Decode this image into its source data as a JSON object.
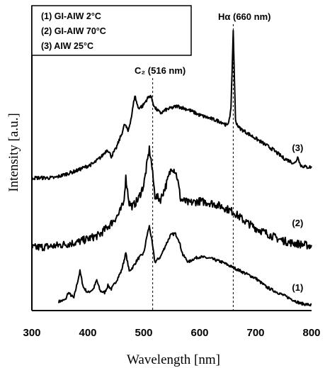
{
  "chart_data": {
    "type": "line",
    "xlabel": "Wavelength [nm]",
    "ylabel": "Intensity [a.u.]",
    "xlim": [
      300,
      800
    ],
    "x_ticks": [
      "300",
      "400",
      "500",
      "600",
      "700",
      "800"
    ],
    "y_ticks_visible": false,
    "grid": false,
    "legend": {
      "placement": "top-left",
      "entries": [
        "(1) GI-AIW 2°C",
        "(2) GI-AIW 70°C",
        "(3) AIW 25°C"
      ]
    },
    "annotations": [
      {
        "text": "C₂ (516 nm)",
        "x": 516,
        "style": "dashed-vertical-line"
      },
      {
        "text": "Hα (660 nm)",
        "x": 660,
        "style": "dashed-vertical-line"
      }
    ],
    "series": [
      {
        "name": "(1)",
        "x": [
          348,
          360,
          365,
          375,
          386,
          392,
          400,
          410,
          416,
          422,
          430,
          436,
          442,
          450,
          460,
          468,
          474,
          480,
          490,
          500,
          506,
          510,
          514,
          520,
          530,
          540,
          548,
          556,
          562,
          570,
          580,
          590,
          600,
          620,
          640,
          660,
          680,
          700,
          720,
          740,
          760,
          780,
          800
        ],
        "y": [
          0.05,
          0.06,
          0.1,
          0.07,
          0.22,
          0.13,
          0.1,
          0.12,
          0.17,
          0.11,
          0.1,
          0.14,
          0.12,
          0.16,
          0.22,
          0.32,
          0.22,
          0.24,
          0.29,
          0.32,
          0.42,
          0.47,
          0.4,
          0.27,
          0.3,
          0.37,
          0.42,
          0.43,
          0.4,
          0.31,
          0.27,
          0.29,
          0.3,
          0.29,
          0.27,
          0.24,
          0.21,
          0.18,
          0.13,
          0.1,
          0.07,
          0.04,
          0.03
        ]
      },
      {
        "name": "(2)",
        "x": [
          300,
          340,
          380,
          420,
          440,
          456,
          464,
          468,
          474,
          480,
          490,
          500,
          506,
          510,
          514,
          520,
          530,
          540,
          550,
          556,
          560,
          566,
          580,
          600,
          620,
          640,
          660,
          680,
          700,
          720,
          740,
          760,
          780,
          800
        ],
        "y": [
          0.35,
          0.36,
          0.38,
          0.42,
          0.48,
          0.54,
          0.6,
          0.74,
          0.6,
          0.58,
          0.62,
          0.7,
          0.82,
          0.9,
          0.82,
          0.64,
          0.62,
          0.7,
          0.8,
          0.78,
          0.74,
          0.62,
          0.6,
          0.61,
          0.6,
          0.58,
          0.55,
          0.5,
          0.46,
          0.43,
          0.4,
          0.38,
          0.37,
          0.36
        ]
      },
      {
        "name": "(3)",
        "x": [
          300,
          340,
          380,
          410,
          425,
          435,
          442,
          450,
          460,
          466,
          472,
          478,
          484,
          490,
          498,
          506,
          512,
          520,
          530,
          540,
          560,
          580,
          600,
          620,
          640,
          650,
          656,
          660,
          664,
          670,
          690,
          710,
          730,
          750,
          770,
          776,
          780,
          790,
          800
        ],
        "y": [
          0.74,
          0.74,
          0.78,
          0.82,
          0.86,
          0.9,
          0.86,
          0.9,
          0.98,
          1.04,
          1.0,
          1.08,
          1.2,
          1.13,
          1.14,
          1.18,
          1.2,
          1.13,
          1.1,
          1.12,
          1.14,
          1.12,
          1.09,
          1.07,
          1.05,
          1.03,
          1.12,
          1.56,
          1.06,
          1.02,
          0.98,
          0.94,
          0.9,
          0.85,
          0.82,
          0.86,
          0.81,
          0.8,
          0.8
        ]
      }
    ],
    "series_labels": [
      {
        "text": "(1)",
        "x": 765,
        "y": 0.11
      },
      {
        "text": "(2)",
        "x": 765,
        "y": 0.47
      },
      {
        "text": "(3)",
        "x": 765,
        "y": 0.89
      }
    ]
  },
  "colors": {
    "line": "#000000",
    "background": "#ffffff"
  }
}
